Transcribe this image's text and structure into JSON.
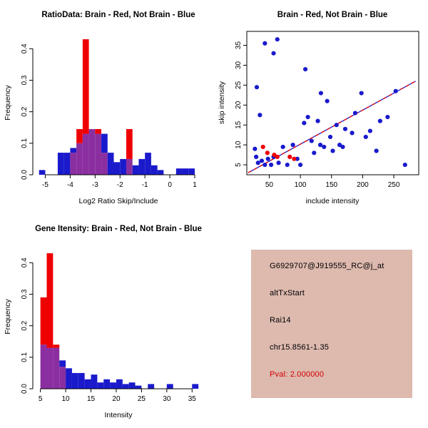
{
  "figure": {
    "background": "#ffffff"
  },
  "colors": {
    "brain": "#ee0000",
    "not_brain": "#1a1acc",
    "overlap": "#8b2fa0",
    "axis": "#000000",
    "info_panel_bg": "#ddb9ae"
  },
  "chart_data": [
    {
      "type": "histogram",
      "title": "RatioData: Brain - Red, Not Brain - Blue",
      "xlabel": "Log2 Ratio Skip/Include",
      "ylabel": "Frequency",
      "xlim": [
        -5.5,
        1.4
      ],
      "ylim": [
        0,
        0.455
      ],
      "xticks": {
        "values": [
          -5,
          -4,
          -3,
          -2,
          -1,
          0,
          1
        ],
        "labels": [
          "-5",
          "-4",
          "-3",
          "-2",
          "-1",
          "0",
          "1"
        ]
      },
      "yticks": {
        "values": [
          0,
          0.1,
          0.2,
          0.3,
          0.4
        ],
        "labels": [
          "0.0",
          "0.1",
          "0.2",
          "0.3",
          "0.4"
        ]
      },
      "bin_start": -5.25,
      "bin_width": 0.25,
      "series": [
        {
          "name": "Not Brain",
          "color": "not_brain",
          "values": [
            0.015,
            0,
            0,
            0.07,
            0.07,
            0.085,
            0.1,
            0.13,
            0.145,
            0.13,
            0.13,
            0.07,
            0.04,
            0.05,
            0.05,
            0.03,
            0.05,
            0.07,
            0.03,
            0.015,
            0,
            0,
            0.02,
            0.02,
            0.02,
            0
          ]
        },
        {
          "name": "Brain",
          "color": "brain",
          "values": [
            0,
            0,
            0,
            0,
            0,
            0.07,
            0.145,
            0.43,
            0.145,
            0.145,
            0.07,
            0,
            0,
            0,
            0.145,
            0,
            0,
            0,
            0,
            0,
            0,
            0,
            0,
            0,
            0,
            0
          ]
        }
      ]
    },
    {
      "type": "scatter",
      "title": "Brain - Red, Not Brain - Blue",
      "xlabel": "include intensity",
      "ylabel": "skip intensity",
      "xlim": [
        14,
        290
      ],
      "ylim": [
        2.5,
        38.5
      ],
      "box": true,
      "xticks": {
        "values": [
          50,
          100,
          150,
          200,
          250
        ],
        "labels": [
          "50",
          "100",
          "150",
          "200",
          "250"
        ]
      },
      "yticks": {
        "values": [
          5,
          10,
          15,
          20,
          25,
          30,
          35
        ],
        "labels": [
          "5",
          "10",
          "15",
          "20",
          "25",
          "30",
          "35"
        ]
      },
      "fit_line": {
        "x1": 16,
        "y1": 3,
        "x2": 285,
        "y2": 26
      },
      "series": [
        {
          "name": "Not Brain",
          "color": "not_brain",
          "points": [
            [
              30,
              24.5
            ],
            [
              43,
              35.5
            ],
            [
              57,
              33
            ],
            [
              63,
              36.5
            ],
            [
              35,
              17.5
            ],
            [
              27,
              9
            ],
            [
              29,
              7
            ],
            [
              32,
              5.5
            ],
            [
              38,
              6
            ],
            [
              43,
              5
            ],
            [
              48,
              6.5
            ],
            [
              53,
              5
            ],
            [
              57,
              7
            ],
            [
              65,
              5.5
            ],
            [
              72,
              9.5
            ],
            [
              79,
              5
            ],
            [
              88,
              10
            ],
            [
              95,
              6.5
            ],
            [
              100,
              5
            ],
            [
              106,
              15.5
            ],
            [
              112,
              17
            ],
            [
              118,
              11
            ],
            [
              122,
              8
            ],
            [
              128,
              16
            ],
            [
              132,
              10
            ],
            [
              138,
              9.5
            ],
            [
              143,
              21
            ],
            [
              148,
              12
            ],
            [
              152,
              8.5
            ],
            [
              158,
              15
            ],
            [
              108,
              29
            ],
            [
              163,
              10
            ],
            [
              168,
              9.5
            ],
            [
              172,
              14
            ],
            [
              183,
              13
            ],
            [
              188,
              18
            ],
            [
              198,
              23
            ],
            [
              205,
              12
            ],
            [
              212,
              13.5
            ],
            [
              222,
              8.5
            ],
            [
              228,
              16
            ],
            [
              240,
              17
            ],
            [
              253,
              23.5
            ],
            [
              268,
              5
            ],
            [
              133,
              23
            ]
          ]
        },
        {
          "name": "Brain",
          "color": "brain",
          "points": [
            [
              40,
              9.5
            ],
            [
              47,
              8
            ],
            [
              58,
              7.5
            ],
            [
              63,
              7
            ],
            [
              83,
              7
            ],
            [
              90,
              6.5
            ]
          ]
        }
      ]
    },
    {
      "type": "histogram",
      "title": "Gene Itensity: Brain - Red, Not Brain - Blue",
      "xlabel": "Intensity",
      "ylabel": "Frequency",
      "xlim": [
        3.5,
        37.5
      ],
      "ylim": [
        0,
        0.455
      ],
      "xticks": {
        "values": [
          5,
          10,
          15,
          20,
          25,
          30,
          35
        ],
        "labels": [
          "5",
          "10",
          "15",
          "20",
          "25",
          "30",
          "35"
        ]
      },
      "yticks": {
        "values": [
          0,
          0.1,
          0.2,
          0.3,
          0.4
        ],
        "labels": [
          "0.0",
          "0.1",
          "0.2",
          "0.3",
          "0.4"
        ]
      },
      "bin_start": 5,
      "bin_width": 1.25,
      "series": [
        {
          "name": "Not Brain",
          "color": "not_brain",
          "values": [
            0.14,
            0.13,
            0.13,
            0.09,
            0.065,
            0.05,
            0.05,
            0.03,
            0.045,
            0.02,
            0.03,
            0.02,
            0.03,
            0.015,
            0.02,
            0.01,
            0,
            0.015,
            0,
            0,
            0.015,
            0,
            0,
            0,
            0.015
          ]
        },
        {
          "name": "Brain",
          "color": "brain",
          "values": [
            0.29,
            0.43,
            0.14,
            0.07,
            0,
            0,
            0,
            0,
            0,
            0,
            0,
            0,
            0,
            0,
            0,
            0,
            0,
            0,
            0,
            0,
            0,
            0,
            0,
            0,
            0
          ]
        }
      ]
    }
  ],
  "info_panel": {
    "lines": [
      {
        "text": "G6929707@J919555_RC@j_at",
        "color": "#000000"
      },
      {
        "text": "altTxStart",
        "color": "#000000"
      },
      {
        "text": "Rai14",
        "color": "#000000"
      },
      {
        "text": "chr15.8561-1.35",
        "color": "#000000"
      },
      {
        "text": "Pval: 2.000000",
        "color": "#d40000"
      }
    ]
  }
}
